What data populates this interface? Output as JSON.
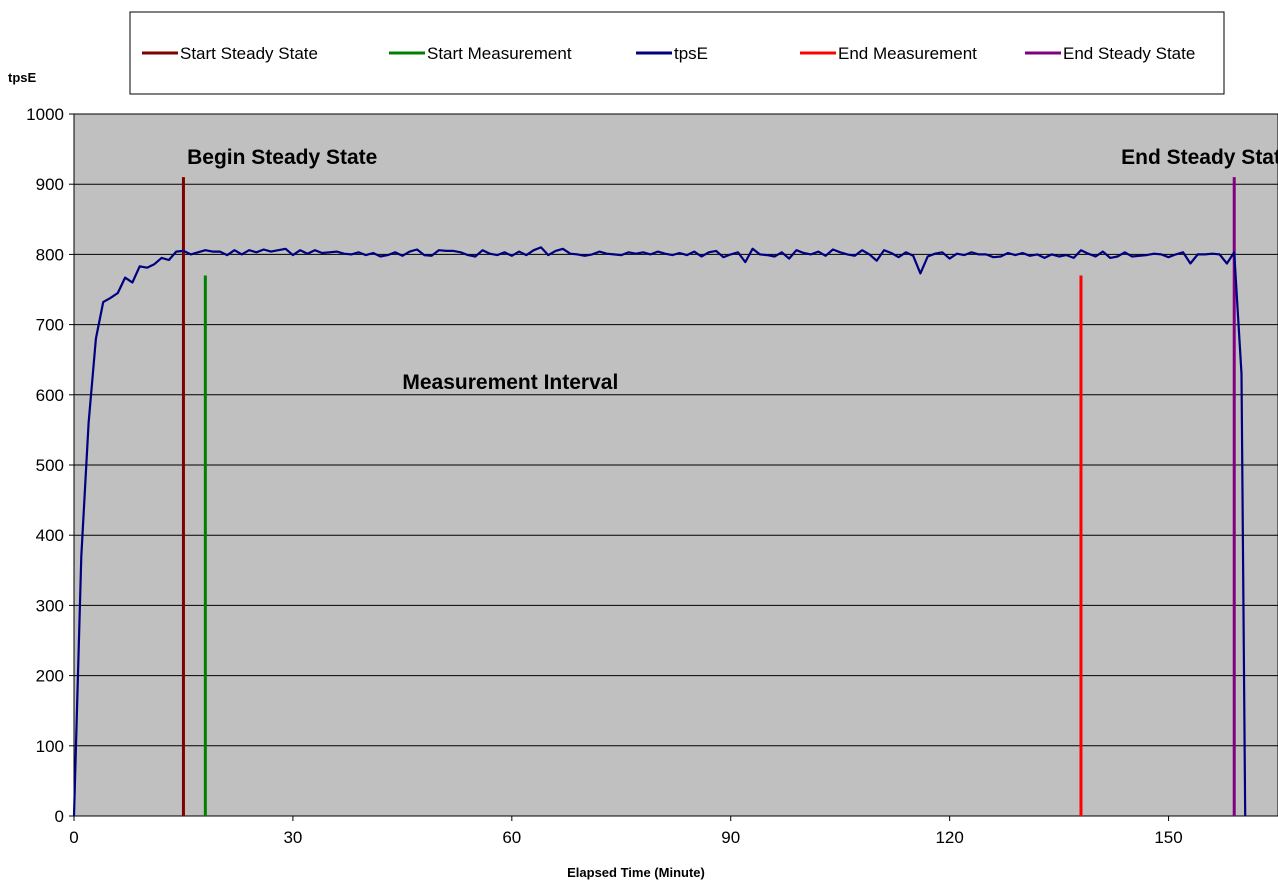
{
  "chart_data": {
    "type": "line",
    "xlabel": "Elapsed Time (Minute)",
    "ylabel": "tpsE",
    "xlim": [
      0,
      165
    ],
    "ylim": [
      0,
      1000
    ],
    "xticks": [
      0,
      30,
      60,
      90,
      120,
      150
    ],
    "yticks": [
      0,
      100,
      200,
      300,
      400,
      500,
      600,
      700,
      800,
      900,
      1000
    ],
    "grid": "horizontal",
    "legend_position": "top",
    "colors": {
      "plot_background": "#c0c0c0",
      "start_steady_state": "#800000",
      "start_measurement": "#008000",
      "tpsE": "#000080",
      "end_measurement": "#ff0000",
      "end_steady_state": "#800080"
    },
    "legend": [
      {
        "label": "Start Steady State",
        "color": "#800000"
      },
      {
        "label": "Start Measurement",
        "color": "#008000"
      },
      {
        "label": "tpsE",
        "color": "#000080"
      },
      {
        "label": "End Measurement",
        "color": "#ff0000"
      },
      {
        "label": "End Steady State",
        "color": "#800080"
      }
    ],
    "vertical_markers": [
      {
        "name": "Start Steady State",
        "x": 15,
        "y_top": 910,
        "color": "#800000"
      },
      {
        "name": "Start Measurement",
        "x": 18,
        "y_top": 770,
        "color": "#008000"
      },
      {
        "name": "End Measurement",
        "x": 138,
        "y_top": 770,
        "color": "#ff0000"
      },
      {
        "name": "End Steady State",
        "x": 159,
        "y_top": 910,
        "color": "#800080"
      }
    ],
    "annotations": [
      {
        "text": "Begin Steady State",
        "x": 15.5,
        "y": 940
      },
      {
        "text": "Measurement Interval",
        "x": 45,
        "y": 620
      },
      {
        "text": "End Steady State",
        "x": 143.5,
        "y": 940
      }
    ],
    "series": [
      {
        "name": "tpsE",
        "color": "#000080",
        "x": [
          0,
          1,
          2,
          3,
          4,
          5,
          6,
          7,
          8,
          9,
          10,
          11,
          12,
          13,
          14,
          15,
          16,
          17,
          18,
          19,
          20,
          21,
          22,
          23,
          24,
          25,
          26,
          27,
          28,
          29,
          30,
          31,
          32,
          33,
          34,
          35,
          36,
          37,
          38,
          39,
          40,
          41,
          42,
          43,
          44,
          45,
          46,
          47,
          48,
          49,
          50,
          51,
          52,
          53,
          54,
          55,
          56,
          57,
          58,
          59,
          60,
          61,
          62,
          63,
          64,
          65,
          66,
          67,
          68,
          69,
          70,
          71,
          72,
          73,
          74,
          75,
          76,
          77,
          78,
          79,
          80,
          81,
          82,
          83,
          84,
          85,
          86,
          87,
          88,
          89,
          90,
          91,
          92,
          93,
          94,
          95,
          96,
          97,
          98,
          99,
          100,
          101,
          102,
          103,
          104,
          105,
          106,
          107,
          108,
          109,
          110,
          111,
          112,
          113,
          114,
          115,
          116,
          117,
          118,
          119,
          120,
          121,
          122,
          123,
          124,
          125,
          126,
          127,
          128,
          129,
          130,
          131,
          132,
          133,
          134,
          135,
          136,
          137,
          138,
          139,
          140,
          141,
          142,
          143,
          144,
          145,
          146,
          147,
          148,
          149,
          150,
          151,
          152,
          153,
          154,
          155,
          156,
          157,
          158,
          159,
          160,
          160.5
        ],
        "values": [
          0,
          370,
          560,
          680,
          732,
          738,
          745,
          767,
          760,
          783,
          781,
          786,
          795,
          792,
          804,
          805,
          800,
          803,
          806,
          804,
          804,
          799,
          806,
          800,
          806,
          803,
          807,
          804,
          806,
          808,
          799,
          806,
          801,
          806,
          802,
          803,
          804,
          801,
          800,
          803,
          799,
          802,
          797,
          799,
          803,
          798,
          804,
          807,
          799,
          798,
          806,
          805,
          805,
          803,
          799,
          797,
          806,
          801,
          799,
          803,
          798,
          804,
          799,
          806,
          810,
          799,
          805,
          808,
          801,
          800,
          798,
          800,
          804,
          801,
          800,
          799,
          803,
          801,
          803,
          800,
          804,
          801,
          799,
          802,
          799,
          804,
          797,
          803,
          805,
          796,
          800,
          803,
          789,
          808,
          800,
          799,
          797,
          803,
          794,
          806,
          802,
          800,
          804,
          798,
          807,
          803,
          800,
          798,
          806,
          800,
          791,
          806,
          802,
          796,
          803,
          798,
          773,
          797,
          801,
          803,
          794,
          801,
          799,
          803,
          800,
          800,
          796,
          797,
          802,
          799,
          802,
          798,
          800,
          795,
          800,
          797,
          799,
          795,
          806,
          801,
          797,
          804,
          795,
          797,
          803,
          797,
          798,
          799,
          801,
          800,
          796,
          800,
          803,
          787,
          800,
          800,
          801,
          800,
          787,
          803,
          630,
          0
        ]
      }
    ]
  }
}
